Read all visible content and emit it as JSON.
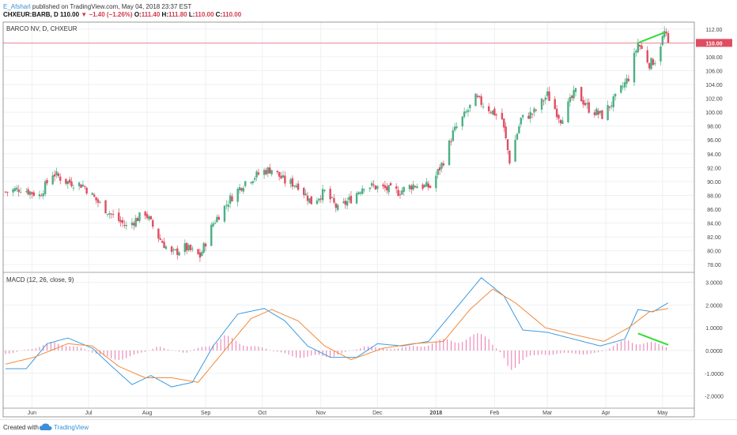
{
  "header": {
    "author": "E_Afsharl",
    "published": "published on TradingView.com, May 04, 2018 23:37 EST",
    "symbol": "CHXEUR:BARB, D",
    "last": "110.00",
    "change": "−1.40 (−1.26%)",
    "open_label": "O:",
    "open": "111.40",
    "high_label": "H:",
    "high": "111.80",
    "low_label": "L:",
    "low": "110.00",
    "close_label": "C:",
    "close": "110.00"
  },
  "footer": {
    "created_with": "Created with",
    "brand": "TradingView"
  },
  "colors": {
    "up": "#4caf84",
    "down": "#e04d62",
    "macd": "#3d9be0",
    "signal": "#f08a3c",
    "hist": "#e2559b",
    "annotation": "#33dd33",
    "price_line": "#e04d62"
  },
  "chart_data": [
    {
      "type": "candlestick",
      "title": "BARCO NV, D, CHXEUR",
      "ylim": [
        77,
        113
      ],
      "yticks": [
        "78.00",
        "80.00",
        "82.00",
        "84.00",
        "86.00",
        "88.00",
        "90.00",
        "92.00",
        "94.00",
        "96.00",
        "98.00",
        "100.00",
        "102.00",
        "104.00",
        "106.00",
        "108.00",
        "110.00",
        "112.00"
      ],
      "last_price_label": "110.00",
      "last_price": 110.0,
      "x_labels": [
        "Jun",
        "Jul",
        "Aug",
        "Sep",
        "Oct",
        "Nov",
        "Dec",
        "2018",
        "Feb",
        "Mar",
        "Apr",
        "May"
      ],
      "start_date": "2017-05-18",
      "end_date": "2018-05-04",
      "key_closes": [
        {
          "date": "2017-05-18",
          "close": 88.5
        },
        {
          "date": "2017-05-26",
          "close": 89.0
        },
        {
          "date": "2017-06-05",
          "close": 88.0
        },
        {
          "date": "2017-06-12",
          "close": 91.2
        },
        {
          "date": "2017-06-19",
          "close": 90.0
        },
        {
          "date": "2017-06-28",
          "close": 89.5
        },
        {
          "date": "2017-07-06",
          "close": 87.0
        },
        {
          "date": "2017-07-14",
          "close": 85.0
        },
        {
          "date": "2017-07-21",
          "close": 83.5
        },
        {
          "date": "2017-07-31",
          "close": 85.5
        },
        {
          "date": "2017-08-07",
          "close": 82.0
        },
        {
          "date": "2017-08-14",
          "close": 79.5
        },
        {
          "date": "2017-08-21",
          "close": 80.5
        },
        {
          "date": "2017-08-29",
          "close": 79.2
        },
        {
          "date": "2017-09-05",
          "close": 84.0
        },
        {
          "date": "2017-09-14",
          "close": 87.5
        },
        {
          "date": "2017-09-22",
          "close": 90.0
        },
        {
          "date": "2017-10-02",
          "close": 91.5
        },
        {
          "date": "2017-10-06",
          "close": 91.8
        },
        {
          "date": "2017-10-13",
          "close": 90.0
        },
        {
          "date": "2017-10-20",
          "close": 89.5
        },
        {
          "date": "2017-10-27",
          "close": 87.0
        },
        {
          "date": "2017-11-03",
          "close": 88.5
        },
        {
          "date": "2017-11-10",
          "close": 86.0
        },
        {
          "date": "2017-11-17",
          "close": 87.5
        },
        {
          "date": "2017-11-24",
          "close": 89.5
        },
        {
          "date": "2017-12-04",
          "close": 89.0
        },
        {
          "date": "2017-12-12",
          "close": 88.5
        },
        {
          "date": "2017-12-20",
          "close": 89.5
        },
        {
          "date": "2017-12-29",
          "close": 89.2
        },
        {
          "date": "2018-01-05",
          "close": 93.0
        },
        {
          "date": "2018-01-10",
          "close": 97.0
        },
        {
          "date": "2018-01-16",
          "close": 99.5
        },
        {
          "date": "2018-01-22",
          "close": 102.0
        },
        {
          "date": "2018-01-29",
          "close": 100.5
        },
        {
          "date": "2018-02-05",
          "close": 99.0
        },
        {
          "date": "2018-02-09",
          "close": 93.0
        },
        {
          "date": "2018-02-15",
          "close": 99.0
        },
        {
          "date": "2018-02-22",
          "close": 100.0
        },
        {
          "date": "2018-03-01",
          "close": 102.5
        },
        {
          "date": "2018-03-08",
          "close": 99.0
        },
        {
          "date": "2018-03-16",
          "close": 103.0
        },
        {
          "date": "2018-03-23",
          "close": 100.5
        },
        {
          "date": "2018-03-30",
          "close": 99.5
        },
        {
          "date": "2018-04-06",
          "close": 102.0
        },
        {
          "date": "2018-04-13",
          "close": 105.0
        },
        {
          "date": "2018-04-18",
          "close": 110.0
        },
        {
          "date": "2018-04-24",
          "close": 107.0
        },
        {
          "date": "2018-04-27",
          "close": 107.5
        },
        {
          "date": "2018-05-02",
          "close": 111.5
        },
        {
          "date": "2018-05-04",
          "close": 110.0
        }
      ],
      "annotation": {
        "from": {
          "date": "2018-04-18",
          "value": 110.0
        },
        "to": {
          "date": "2018-05-02",
          "value": 111.5
        }
      }
    },
    {
      "type": "line",
      "title": "MACD (12, 26, close, 9)",
      "ylim": [
        -2.5,
        3.4
      ],
      "yticks": [
        "3.0000",
        "2.0000",
        "1.0000",
        "0.0000",
        "-1.0000",
        "-2.0000"
      ],
      "series": [
        {
          "name": "MACD",
          "points": [
            {
              "date": "2017-05-18",
              "value": -0.8
            },
            {
              "date": "2017-05-29",
              "value": -0.8
            },
            {
              "date": "2017-06-09",
              "value": 0.3
            },
            {
              "date": "2017-06-20",
              "value": 0.55
            },
            {
              "date": "2017-07-03",
              "value": 0.1
            },
            {
              "date": "2017-07-12",
              "value": -0.6
            },
            {
              "date": "2017-07-24",
              "value": -1.5
            },
            {
              "date": "2017-08-03",
              "value": -1.1
            },
            {
              "date": "2017-08-14",
              "value": -1.6
            },
            {
              "date": "2017-08-25",
              "value": -1.4
            },
            {
              "date": "2017-09-05",
              "value": 0.2
            },
            {
              "date": "2017-09-18",
              "value": 1.6
            },
            {
              "date": "2017-10-02",
              "value": 1.85
            },
            {
              "date": "2017-10-13",
              "value": 1.3
            },
            {
              "date": "2017-10-25",
              "value": 0.2
            },
            {
              "date": "2017-11-06",
              "value": -0.3
            },
            {
              "date": "2017-11-20",
              "value": -0.3
            },
            {
              "date": "2017-12-01",
              "value": 0.3
            },
            {
              "date": "2017-12-14",
              "value": 0.2
            },
            {
              "date": "2017-12-28",
              "value": 0.4
            },
            {
              "date": "2018-01-12",
              "value": 1.9
            },
            {
              "date": "2018-01-25",
              "value": 3.2
            },
            {
              "date": "2018-02-06",
              "value": 2.4
            },
            {
              "date": "2018-02-16",
              "value": 0.9
            },
            {
              "date": "2018-03-01",
              "value": 0.8
            },
            {
              "date": "2018-03-15",
              "value": 0.5
            },
            {
              "date": "2018-03-29",
              "value": 0.2
            },
            {
              "date": "2018-04-11",
              "value": 0.5
            },
            {
              "date": "2018-04-18",
              "value": 1.8
            },
            {
              "date": "2018-04-26",
              "value": 1.7
            },
            {
              "date": "2018-05-04",
              "value": 2.1
            }
          ]
        },
        {
          "name": "Signal",
          "points": [
            {
              "date": "2017-05-18",
              "value": -0.6
            },
            {
              "date": "2017-06-02",
              "value": -0.3
            },
            {
              "date": "2017-06-20",
              "value": 0.3
            },
            {
              "date": "2017-07-03",
              "value": 0.2
            },
            {
              "date": "2017-07-17",
              "value": -0.7
            },
            {
              "date": "2017-07-31",
              "value": -1.2
            },
            {
              "date": "2017-08-14",
              "value": -1.2
            },
            {
              "date": "2017-08-28",
              "value": -1.4
            },
            {
              "date": "2017-09-11",
              "value": 0.0
            },
            {
              "date": "2017-09-25",
              "value": 1.4
            },
            {
              "date": "2017-10-06",
              "value": 1.8
            },
            {
              "date": "2017-10-20",
              "value": 1.3
            },
            {
              "date": "2017-11-03",
              "value": 0.2
            },
            {
              "date": "2017-11-17",
              "value": -0.4
            },
            {
              "date": "2017-12-04",
              "value": 0.1
            },
            {
              "date": "2017-12-20",
              "value": 0.3
            },
            {
              "date": "2018-01-05",
              "value": 0.4
            },
            {
              "date": "2018-01-19",
              "value": 1.8
            },
            {
              "date": "2018-01-31",
              "value": 2.7
            },
            {
              "date": "2018-02-12",
              "value": 2.1
            },
            {
              "date": "2018-02-28",
              "value": 1.0
            },
            {
              "date": "2018-03-15",
              "value": 0.7
            },
            {
              "date": "2018-03-31",
              "value": 0.4
            },
            {
              "date": "2018-04-13",
              "value": 1.0
            },
            {
              "date": "2018-04-24",
              "value": 1.7
            },
            {
              "date": "2018-05-04",
              "value": 1.85
            }
          ]
        }
      ],
      "histogram": {
        "name": "Histogram",
        "points": [
          {
            "date": "2017-05-18",
            "value": -0.2
          },
          {
            "date": "2017-06-12",
            "value": 0.4
          },
          {
            "date": "2017-06-22",
            "value": 0.35
          },
          {
            "date": "2017-07-12",
            "value": -0.5
          },
          {
            "date": "2017-07-26",
            "value": -0.3
          },
          {
            "date": "2017-08-07",
            "value": 0.2
          },
          {
            "date": "2017-08-21",
            "value": -0.15
          },
          {
            "date": "2017-09-11",
            "value": 0.7
          },
          {
            "date": "2017-09-22",
            "value": 0.4
          },
          {
            "date": "2017-10-16",
            "value": -0.3
          },
          {
            "date": "2017-11-03",
            "value": -0.4
          },
          {
            "date": "2017-11-24",
            "value": 0.2
          },
          {
            "date": "2017-12-12",
            "value": 0.1
          },
          {
            "date": "2018-01-15",
            "value": 0.7
          },
          {
            "date": "2018-01-29",
            "value": 0.8
          },
          {
            "date": "2018-02-09",
            "value": -0.9
          },
          {
            "date": "2018-02-26",
            "value": -0.2
          },
          {
            "date": "2018-03-12",
            "value": -0.2
          },
          {
            "date": "2018-03-28",
            "value": -0.15
          },
          {
            "date": "2018-04-13",
            "value": 0.6
          },
          {
            "date": "2018-04-20",
            "value": 0.5
          },
          {
            "date": "2018-05-04",
            "value": 0.2
          }
        ]
      },
      "annotation": {
        "from": {
          "date": "2018-04-18",
          "value": 0.75
        },
        "to": {
          "date": "2018-05-04",
          "value": 0.25
        }
      }
    }
  ]
}
